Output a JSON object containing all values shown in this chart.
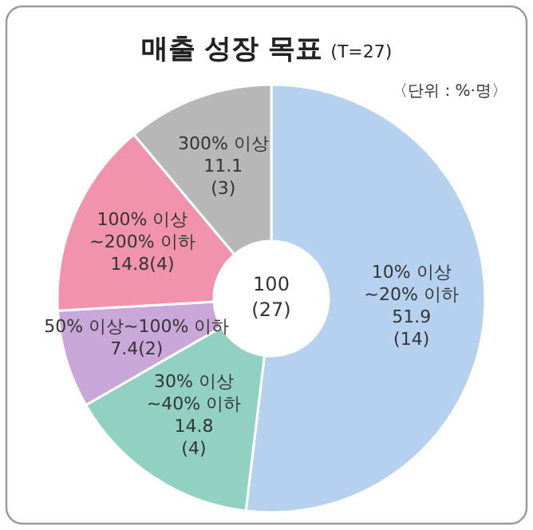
{
  "chart_data": {
    "type": "donut",
    "title": "매출 성장 목표",
    "subtitle": "(T=27)",
    "annotations": [
      "〈단위 : %·명〉",
      "100 (27)"
    ],
    "categories": [
      "10% 이상 ~20% 이하",
      "30% 이상 ~40% 이하",
      "50% 이상~100% 이하",
      "100% 이상 ~200% 이하",
      "300% 이상"
    ],
    "values": [
      51.9,
      14.8,
      7.4,
      14.8,
      11.1
    ],
    "value_labels": [
      "51.9 (14)",
      "14.8 (4)",
      "7.4(2)",
      "14.8(4)",
      "11.1 (3)"
    ],
    "colors": [
      "#b5d1ef",
      "#92d0c2",
      "#c9a7d8",
      "#f193ac",
      "#b7b7b7"
    ]
  }
}
